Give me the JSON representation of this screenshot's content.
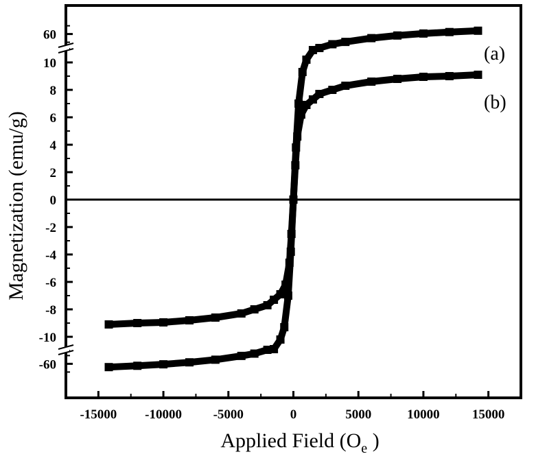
{
  "chart_data": {
    "type": "line",
    "title": "",
    "xlabel": "Applied Field (O",
    "xlabel_subscript": "e",
    "xlabel_close": " )",
    "ylabel": "Magnetization (emu/g)",
    "xlim": [
      -17500,
      17500
    ],
    "y_axis_breaks": "broken axis: 60 above the upper break, -60 below the lower break",
    "x_ticks": [
      -15000,
      -10000,
      -5000,
      0,
      5000,
      10000,
      15000
    ],
    "x_tick_labels": [
      "-15000",
      "-10000",
      "-5000",
      "0",
      "5000",
      "10000",
      "15000"
    ],
    "y_ticks": [
      60,
      10,
      8,
      6,
      4,
      2,
      0,
      -2,
      -4,
      -6,
      -8,
      -10,
      -60
    ],
    "y_tick_labels": [
      "60",
      "10",
      "8",
      "6",
      "4",
      "2",
      "0",
      "-2",
      "-4",
      "-6",
      "-8",
      "-10",
      "-60"
    ],
    "reference_line_y": 0,
    "grid": false,
    "series": [
      {
        "label": "(a)",
        "x": [
          -14200,
          -12000,
          -10000,
          -8000,
          -6000,
          -4000,
          -3000,
          -2000,
          -1500,
          -1000,
          -700,
          -400,
          -200,
          0,
          200,
          400,
          700,
          1000,
          1500,
          2000,
          3000,
          4000,
          6000,
          8000,
          10000,
          12000,
          14200
        ],
        "y": [
          -62,
          -61.2,
          -60.3,
          -59.1,
          -57.5,
          -55.2,
          -53.8,
          -51.5,
          -10.9,
          -10.2,
          -9.3,
          -7,
          -3.8,
          0,
          3.8,
          7,
          9.3,
          10.2,
          10.9,
          51.5,
          53.8,
          55.2,
          57.5,
          59.1,
          60.3,
          61.2,
          62
        ]
      },
      {
        "label": "(b)",
        "x": [
          -14200,
          -12000,
          -10000,
          -8000,
          -6000,
          -4000,
          -3000,
          -2000,
          -1500,
          -1000,
          -600,
          -300,
          -150,
          0,
          150,
          300,
          600,
          1000,
          1500,
          2000,
          3000,
          4000,
          6000,
          8000,
          10000,
          12000,
          14200
        ],
        "y": [
          -9.1,
          -9,
          -8.95,
          -8.8,
          -8.6,
          -8.3,
          -8,
          -7.7,
          -7.3,
          -6.9,
          -6.2,
          -4.6,
          -2.5,
          0,
          2.5,
          4.6,
          6.2,
          6.9,
          7.3,
          7.7,
          8,
          8.3,
          8.6,
          8.8,
          8.95,
          9,
          9.1
        ]
      }
    ]
  }
}
